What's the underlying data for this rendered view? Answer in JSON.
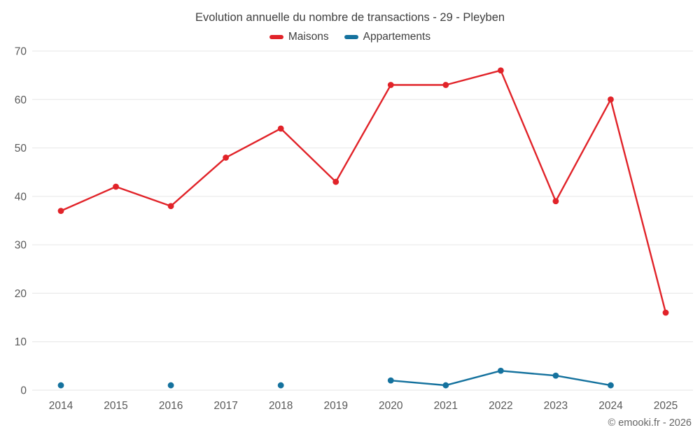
{
  "chart": {
    "title": "Evolution annuelle du nombre de transactions - 29 - Pleyben",
    "copyright": "© emooki.fr - 2026"
  },
  "chart_data": {
    "type": "line",
    "title": "Evolution annuelle du nombre de transactions - 29 - Pleyben",
    "categories": [
      "2014",
      "2015",
      "2016",
      "2017",
      "2018",
      "2019",
      "2020",
      "2021",
      "2022",
      "2023",
      "2024",
      "2025"
    ],
    "series": [
      {
        "name": "Maisons",
        "color": "#e12329",
        "values": [
          37,
          42,
          38,
          48,
          54,
          43,
          63,
          63,
          66,
          39,
          60,
          16
        ]
      },
      {
        "name": "Appartements",
        "color": "#15729e",
        "values": [
          1,
          null,
          1,
          null,
          1,
          null,
          2,
          1,
          4,
          3,
          1,
          null
        ]
      }
    ],
    "xlabel": "",
    "ylabel": "",
    "ylim": [
      0,
      70
    ],
    "yticks": [
      0,
      10,
      20,
      30,
      40,
      50,
      60,
      70
    ],
    "grid": "horizontal",
    "grid_color": "#e6e6e6",
    "tick_color": "#595959",
    "legend_position": "top"
  }
}
